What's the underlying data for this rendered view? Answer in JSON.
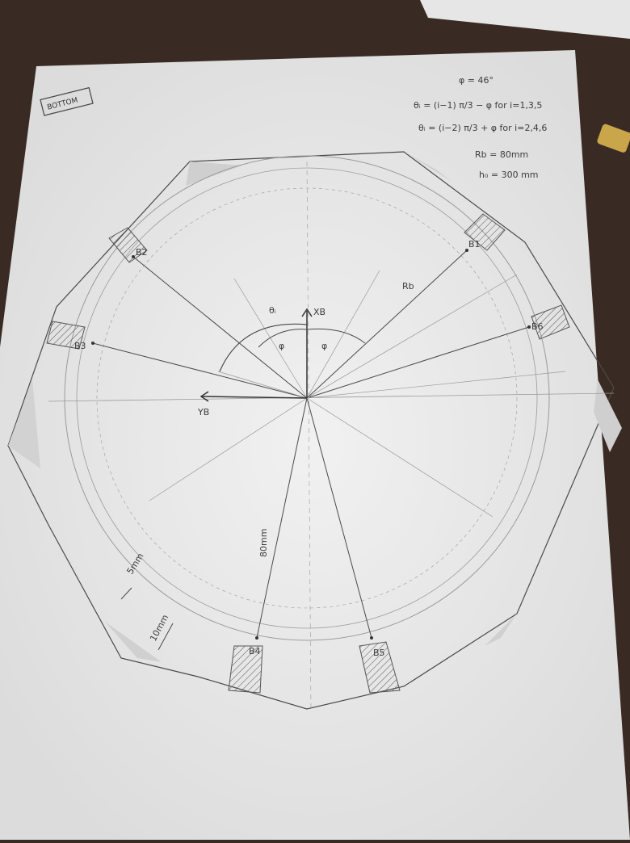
{
  "title_tag": "BOTTOM",
  "notes": {
    "phi": "φ = 46°",
    "theta_odd": "θᵢ = (i−1) π/3 − φ for i=1,3,5",
    "theta_even": "θᵢ = (i−2) π/3 + φ for i=2,4,6",
    "rb": "Rb = 80mm",
    "h0": "h₀ = 300 mm"
  },
  "axes": {
    "x": "XB",
    "y": "YB"
  },
  "angles": {
    "theta": "θᵢ",
    "phi_left": "φ",
    "phi_right": "φ"
  },
  "radius_label": "Rb",
  "radius_dim": "80mm",
  "dims": {
    "gap": "5mm",
    "width": "10mm"
  },
  "joints": [
    "B1",
    "B2",
    "B3",
    "B4",
    "B5",
    "B6"
  ],
  "colors": {
    "paper": "#eeeeee",
    "table": "#3a2a24",
    "pencil": "#4a4a4a"
  }
}
